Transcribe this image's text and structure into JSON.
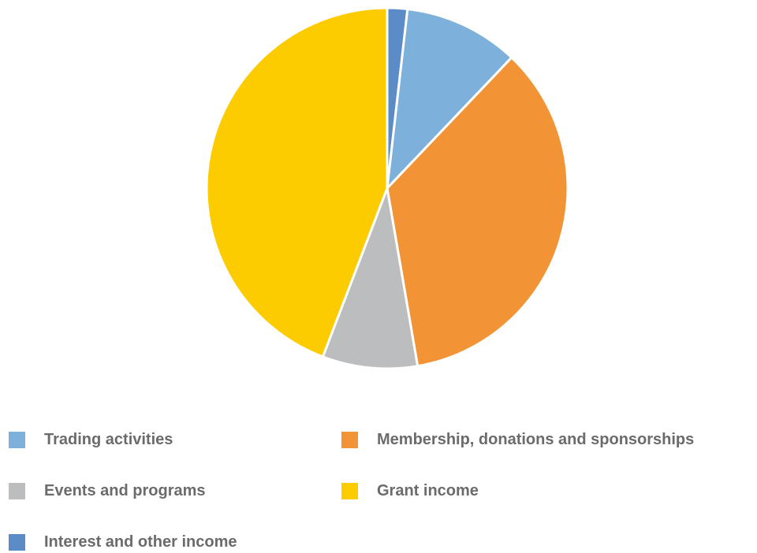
{
  "chart_data": {
    "type": "pie",
    "title": "",
    "slices": [
      {
        "label": "Interest and other income",
        "value": 1.8,
        "color": "#5b8cc8"
      },
      {
        "label": "Trading activities",
        "value": 10.3,
        "color": "#7db1db"
      },
      {
        "label": "Membership, donations and sponsorships",
        "value": 35.2,
        "color": "#f29435"
      },
      {
        "label": "Events and programs",
        "value": 8.5,
        "color": "#bcbdbf"
      },
      {
        "label": "Grant income",
        "value": 44.2,
        "color": "#fccb00"
      }
    ],
    "start_angle_deg": 0,
    "direction": "clockwise",
    "legend": {
      "placement": "bottom",
      "items": [
        {
          "label": "Trading activities",
          "color": "#7db1db"
        },
        {
          "label": "Membership, donations and sponsorships",
          "color": "#f29435"
        },
        {
          "label": "Events and programs",
          "color": "#bcbdbf"
        },
        {
          "label": "Grant income",
          "color": "#fccb00"
        },
        {
          "label": "Interest and other income",
          "color": "#5b8cc8"
        }
      ]
    }
  }
}
